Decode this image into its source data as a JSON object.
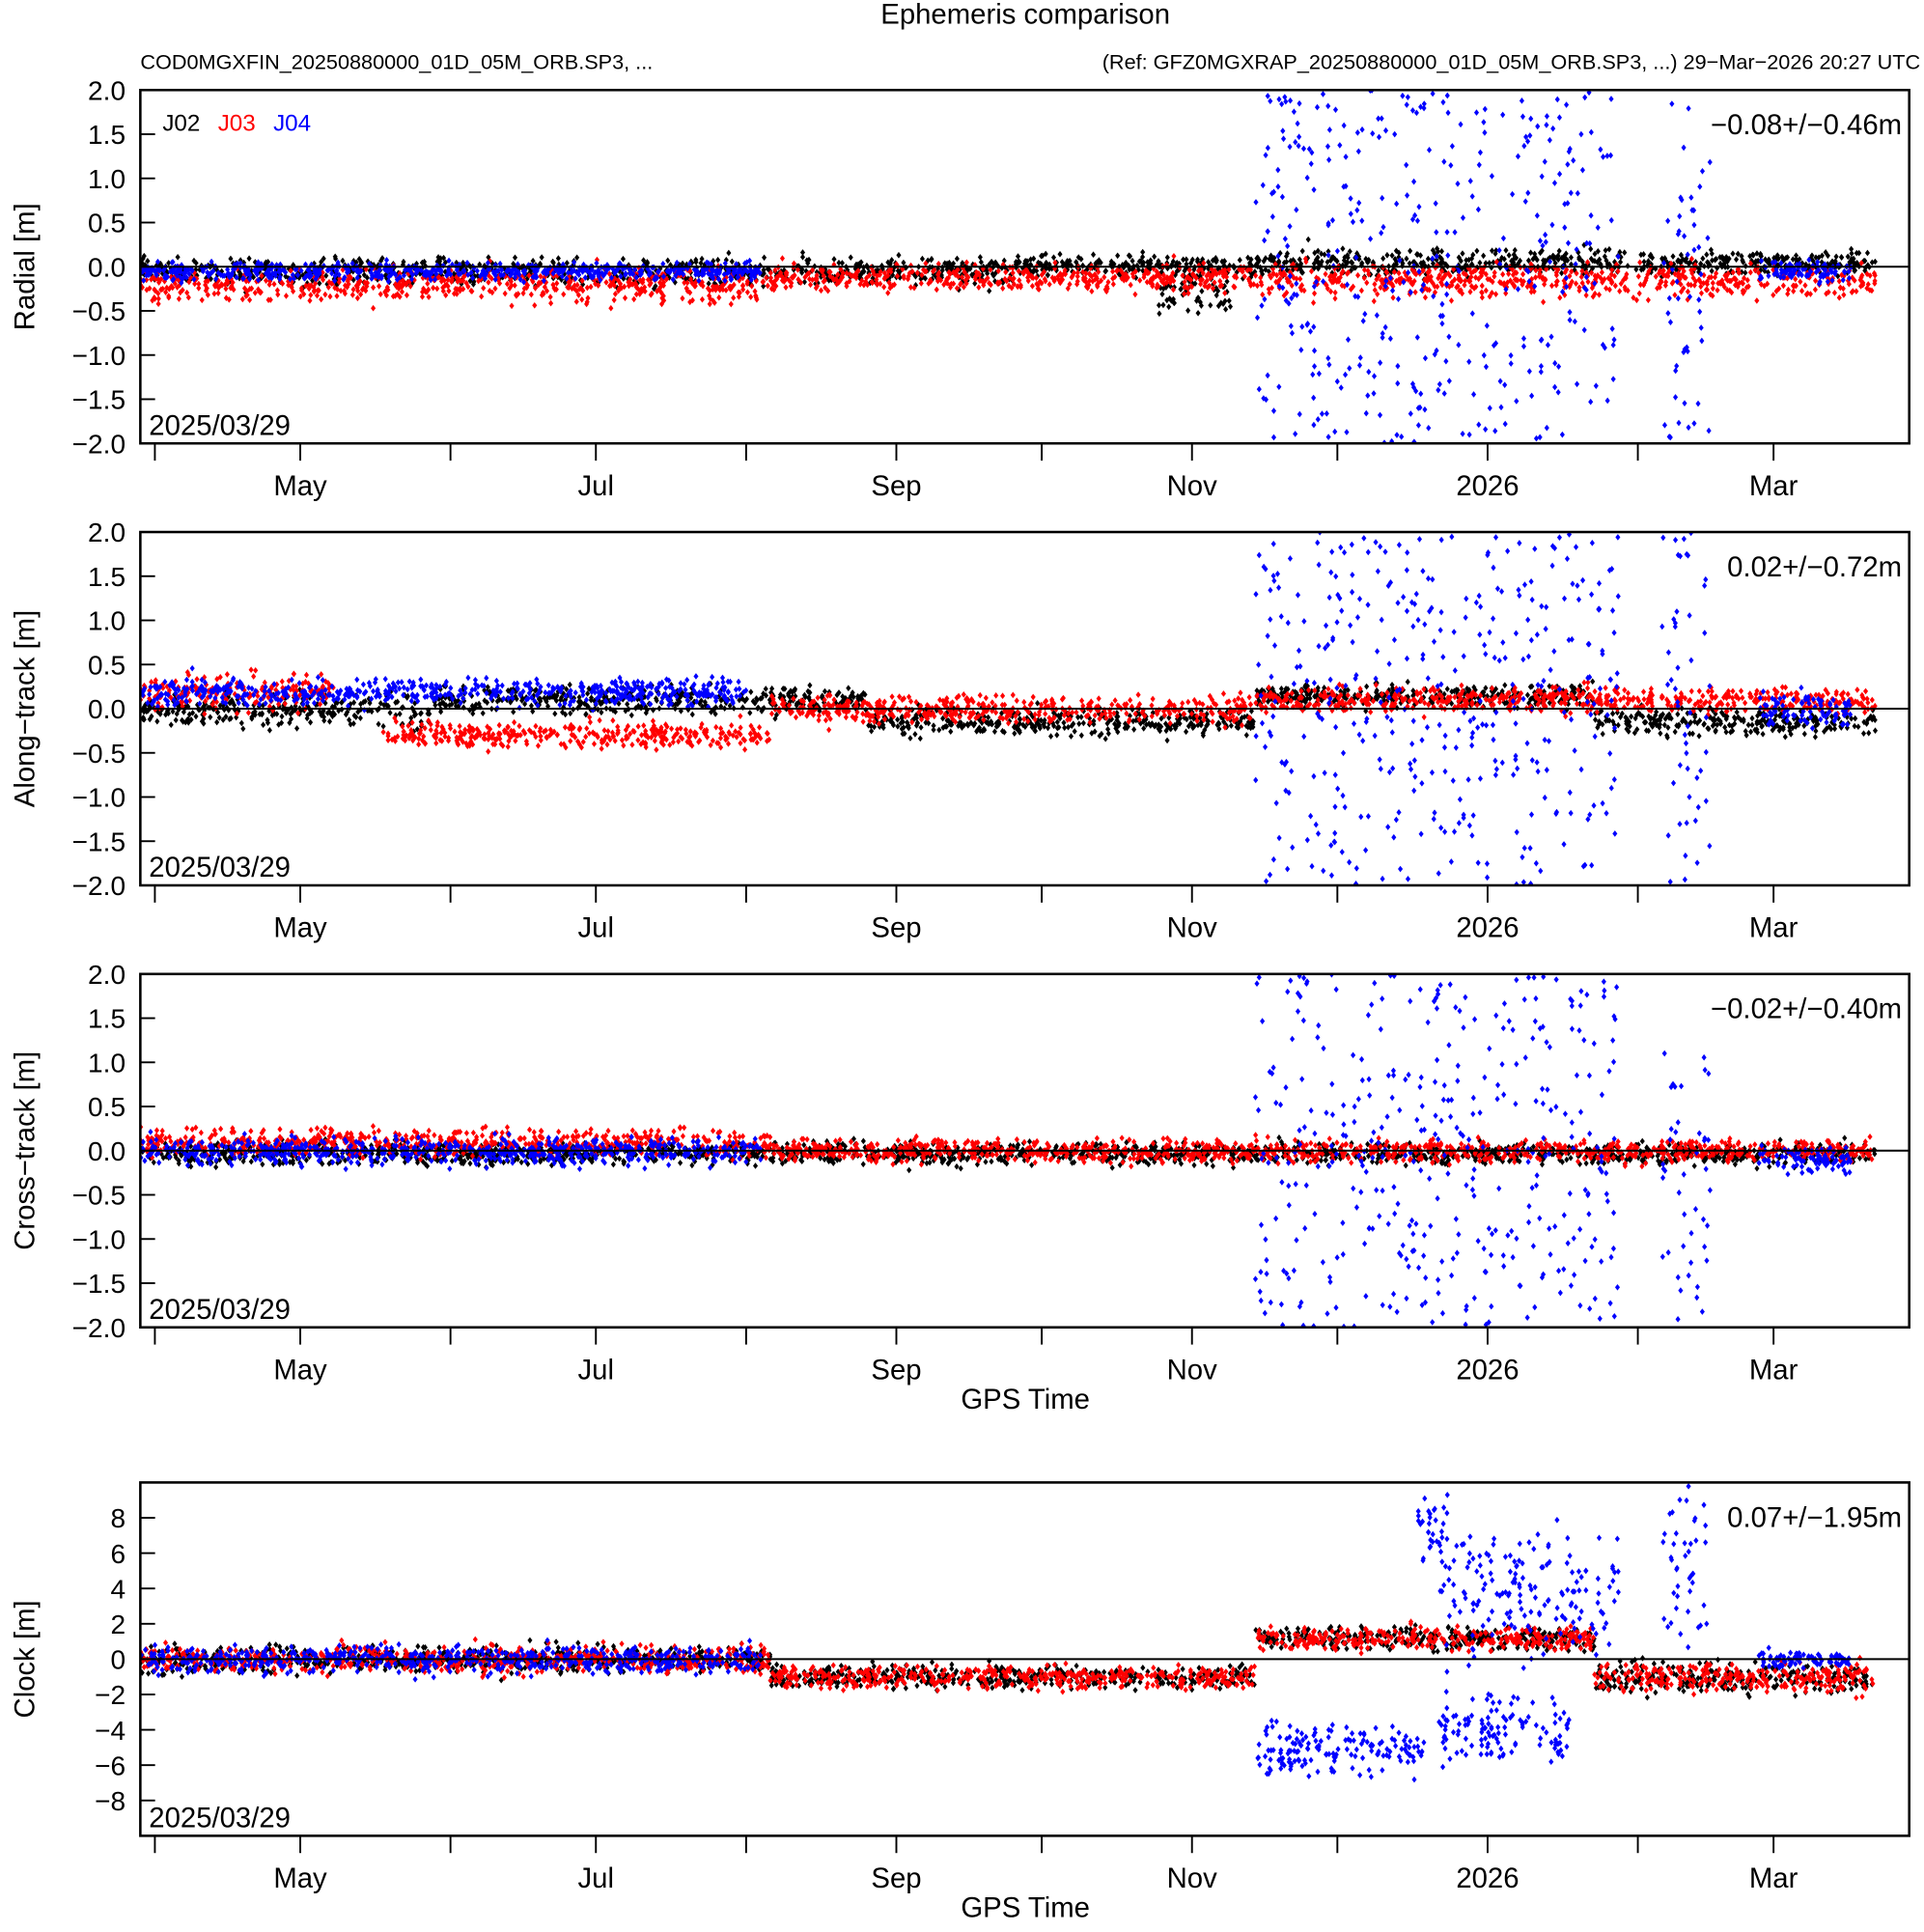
{
  "title": "Ephemeris comparison",
  "subtitle_left": "COD0MGXFIN_20250880000_01D_05M_ORB.SP3, ...",
  "subtitle_right": "(Ref: GFZ0MGXRAP_20250880000_01D_05M_ORB.SP3, ...) 29−Mar−2026 20:27 UTC",
  "legend": [
    {
      "name": "J02",
      "color": "#000000"
    },
    {
      "name": "J03",
      "color": "#ff0000"
    },
    {
      "name": "J04",
      "color": "#0000ff"
    }
  ],
  "chart_data": [
    {
      "type": "scatter",
      "ylabel": "Radial [m]",
      "xlabel": "",
      "ylim": [
        -2,
        2
      ],
      "yticks": [
        "2.0",
        "1.5",
        "1.0",
        "0.5",
        "0.0",
        "−0.5",
        "−1.0",
        "−1.5",
        "−2.0"
      ],
      "ytick_values": [
        2,
        1.5,
        1,
        0.5,
        0,
        -0.5,
        -1,
        -1.5,
        -2
      ],
      "stat": "−0.08+/−0.46m",
      "date": "2025/03/29",
      "series": [
        {
          "name": "J02",
          "segments": [
            [
              0,
              180,
              -0.05,
              0.12
            ],
            [
              180,
              230,
              0.0,
              0.1
            ],
            [
              210,
              225,
              -0.3,
              0.2
            ],
            [
              230,
              358,
              0.05,
              0.12
            ]
          ]
        },
        {
          "name": "J03",
          "segments": [
            [
              0,
              130,
              -0.2,
              0.15
            ],
            [
              130,
              230,
              -0.12,
              0.12
            ],
            [
              230,
              358,
              -0.15,
              0.15
            ]
          ]
        },
        {
          "name": "J04",
          "segments": [
            [
              0,
              128,
              -0.05,
              0.08
            ],
            [
              230,
              305,
              0,
              2.0,
              "uniform"
            ],
            [
              314,
              324,
              0,
              2.0,
              "uniform"
            ],
            [
              334,
              353,
              -0.05,
              0.1
            ]
          ]
        }
      ]
    },
    {
      "type": "scatter",
      "ylabel": "Along−track [m]",
      "xlabel": "",
      "ylim": [
        -2,
        2
      ],
      "yticks": [
        "2.0",
        "1.5",
        "1.0",
        "0.5",
        "0.0",
        "−0.5",
        "−1.0",
        "−1.5",
        "−2.0"
      ],
      "ytick_values": [
        2,
        1.5,
        1,
        0.5,
        0,
        -0.5,
        -1,
        -1.5,
        -2
      ],
      "stat": "0.02+/−0.72m",
      "date": "2025/03/29",
      "series": [
        {
          "name": "J02",
          "segments": [
            [
              0,
              60,
              0.0,
              0.15
            ],
            [
              60,
              150,
              0.1,
              0.12
            ],
            [
              150,
              230,
              -0.15,
              0.12
            ],
            [
              230,
              300,
              0.15,
              0.1
            ],
            [
              300,
              358,
              -0.15,
              0.12
            ]
          ]
        },
        {
          "name": "J03",
          "segments": [
            [
              0,
              40,
              0.2,
              0.15
            ],
            [
              50,
              130,
              -0.3,
              0.12
            ],
            [
              130,
              230,
              0.0,
              0.12
            ],
            [
              230,
              358,
              0.1,
              0.12
            ]
          ]
        },
        {
          "name": "J04",
          "segments": [
            [
              0,
              125,
              0.2,
              0.12
            ],
            [
              230,
              305,
              0,
              2.0,
              "uniform"
            ],
            [
              314,
              324,
              0,
              2.0,
              "uniform"
            ],
            [
              334,
              353,
              0.0,
              0.15
            ]
          ]
        }
      ]
    },
    {
      "type": "scatter",
      "ylabel": "Cross−track [m]",
      "xlabel": "GPS Time",
      "ylim": [
        -2,
        2
      ],
      "yticks": [
        "2.0",
        "1.5",
        "1.0",
        "0.5",
        "0.0",
        "−0.5",
        "−1.0",
        "−1.5",
        "−2.0"
      ],
      "ytick_values": [
        2,
        1.5,
        1,
        0.5,
        0,
        -0.5,
        -1,
        -1.5,
        -2
      ],
      "stat": "−0.02+/−0.40m",
      "date": "2025/03/29",
      "series": [
        {
          "name": "J02",
          "segments": [
            [
              0,
              358,
              -0.03,
              0.1
            ]
          ]
        },
        {
          "name": "J03",
          "segments": [
            [
              0,
              130,
              0.1,
              0.12
            ],
            [
              130,
              358,
              0.0,
              0.1
            ]
          ]
        },
        {
          "name": "J04",
          "segments": [
            [
              0,
              128,
              0.0,
              0.12
            ],
            [
              230,
              305,
              0,
              2.0,
              "uniform"
            ],
            [
              314,
              324,
              -0.5,
              1.3
            ],
            [
              334,
              353,
              -0.1,
              0.12
            ]
          ]
        }
      ]
    },
    {
      "type": "scatter",
      "ylabel": "Clock [m]",
      "xlabel": "GPS Time",
      "ylim": [
        -10,
        10
      ],
      "yticks": [
        "8",
        "6",
        "4",
        "2",
        "0",
        "−2",
        "−4",
        "−6",
        "−8"
      ],
      "ytick_values": [
        8,
        6,
        4,
        2,
        0,
        -2,
        -4,
        -6,
        -8
      ],
      "stat": "0.07+/−1.95m",
      "date": "2025/03/29",
      "series": [
        {
          "name": "J02",
          "segments": [
            [
              0,
              130,
              0,
              0.6
            ],
            [
              130,
              230,
              -1,
              0.5
            ],
            [
              230,
              300,
              1.2,
              0.5
            ],
            [
              300,
              358,
              -1,
              0.7
            ]
          ]
        },
        {
          "name": "J03",
          "segments": [
            [
              0,
              130,
              0,
              0.6
            ],
            [
              130,
              230,
              -1,
              0.5
            ],
            [
              230,
              300,
              1.2,
              0.5
            ],
            [
              300,
              358,
              -1,
              0.7
            ]
          ]
        },
        {
          "name": "J04",
          "segments": [
            [
              0,
              128,
              0,
              0.6
            ],
            [
              230,
              265,
              -5,
              1.2
            ],
            [
              263,
              270,
              7,
              2
            ],
            [
              268,
              295,
              -4,
              1.5
            ],
            [
              268,
              305,
              4,
              3
            ],
            [
              314,
              324,
              5,
              4
            ],
            [
              334,
              353,
              0,
              0.4
            ]
          ]
        }
      ]
    }
  ],
  "x_axis": {
    "xlim_days_since_2025_03_29": [
      0,
      365
    ],
    "major_ticks": [
      {
        "label": "May",
        "day": 33
      },
      {
        "label": "Jul",
        "day": 94
      },
      {
        "label": "Sep",
        "day": 156
      },
      {
        "label": "Nov",
        "day": 217
      },
      {
        "label": "2026",
        "day": 278
      },
      {
        "label": "Mar",
        "day": 337
      }
    ],
    "minor_ticks_days": [
      3,
      64,
      125,
      186,
      247,
      309
    ]
  }
}
